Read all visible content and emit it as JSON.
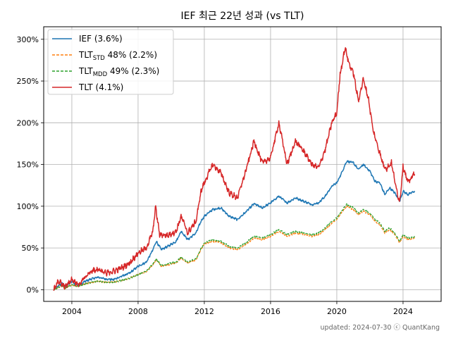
{
  "chart_data": {
    "type": "line",
    "title": "IEF 최근 22년 성과 (vs TLT)",
    "xlabel": "",
    "ylabel": "",
    "xlim": [
      2002.3,
      2026.3
    ],
    "ylim": [
      -14,
      315
    ],
    "x_ticks": [
      2004,
      2008,
      2012,
      2016,
      2020,
      2024
    ],
    "x_tick_labels": [
      "2004",
      "2008",
      "2012",
      "2016",
      "2020",
      "2024"
    ],
    "y_ticks": [
      0,
      50,
      100,
      150,
      200,
      250,
      300
    ],
    "y_tick_labels": [
      "0%",
      "50%",
      "100%",
      "150%",
      "200%",
      "250%",
      "300%"
    ],
    "grid": true,
    "legend_position": "top-left",
    "legend": [
      {
        "label": "IEF (3.6%)",
        "main": "IEF (3.6%)",
        "sub": "",
        "rest": "",
        "color": "#1f77b4",
        "style": "solid"
      },
      {
        "label": "TLT_STD 48% (2.2%)",
        "main": "TLT",
        "sub": "STD",
        "rest": " 48% (2.2%)",
        "color": "#ff7f0e",
        "style": "dashed"
      },
      {
        "label": "TLT_MDD 49% (2.3%)",
        "main": "TLT",
        "sub": "MDD",
        "rest": " 49% (2.3%)",
        "color": "#2ca02c",
        "style": "dashed"
      },
      {
        "label": "TLT (4.1%)",
        "main": "TLT (4.1%)",
        "sub": "",
        "rest": "",
        "color": "#d62728",
        "style": "solid"
      }
    ],
    "footer": "updated: 2024-07-30 ⓒ QuantKang",
    "series": [
      {
        "name": "IEF (3.6%)",
        "color": "#1f77b4",
        "noise": 1.2,
        "points": [
          [
            2002.9,
            0
          ],
          [
            2003.4,
            8
          ],
          [
            2003.6,
            4
          ],
          [
            2004.0,
            10
          ],
          [
            2004.4,
            5
          ],
          [
            2004.8,
            10
          ],
          [
            2005.2,
            13
          ],
          [
            2005.6,
            15
          ],
          [
            2006.0,
            13
          ],
          [
            2006.5,
            12
          ],
          [
            2007.0,
            16
          ],
          [
            2007.5,
            20
          ],
          [
            2008.0,
            28
          ],
          [
            2008.5,
            33
          ],
          [
            2008.9,
            48
          ],
          [
            2009.1,
            58
          ],
          [
            2009.4,
            48
          ],
          [
            2009.8,
            52
          ],
          [
            2010.3,
            58
          ],
          [
            2010.6,
            70
          ],
          [
            2011.0,
            60
          ],
          [
            2011.5,
            68
          ],
          [
            2011.8,
            82
          ],
          [
            2012.0,
            88
          ],
          [
            2012.5,
            96
          ],
          [
            2013.0,
            98
          ],
          [
            2013.5,
            88
          ],
          [
            2014.0,
            84
          ],
          [
            2014.5,
            93
          ],
          [
            2015.0,
            103
          ],
          [
            2015.5,
            98
          ],
          [
            2016.0,
            104
          ],
          [
            2016.5,
            112
          ],
          [
            2017.0,
            104
          ],
          [
            2017.5,
            110
          ],
          [
            2018.0,
            106
          ],
          [
            2018.5,
            102
          ],
          [
            2018.9,
            104
          ],
          [
            2019.3,
            112
          ],
          [
            2019.7,
            124
          ],
          [
            2020.0,
            128
          ],
          [
            2020.2,
            136
          ],
          [
            2020.6,
            154
          ],
          [
            2021.0,
            152
          ],
          [
            2021.3,
            144
          ],
          [
            2021.6,
            150
          ],
          [
            2022.0,
            142
          ],
          [
            2022.3,
            130
          ],
          [
            2022.6,
            128
          ],
          [
            2022.9,
            114
          ],
          [
            2023.2,
            122
          ],
          [
            2023.5,
            116
          ],
          [
            2023.8,
            106
          ],
          [
            2024.0,
            118
          ],
          [
            2024.3,
            114
          ],
          [
            2024.7,
            118
          ]
        ]
      },
      {
        "name": "TLT_STD 48% (2.2%)",
        "color": "#ff7f0e",
        "noise": 0.9,
        "offset": 0.8,
        "dashed": true,
        "points": [
          [
            2002.9,
            0
          ],
          [
            2003.4,
            5
          ],
          [
            2003.6,
            2
          ],
          [
            2004.0,
            6
          ],
          [
            2004.4,
            4
          ],
          [
            2004.8,
            7
          ],
          [
            2005.2,
            9
          ],
          [
            2005.6,
            10
          ],
          [
            2006.0,
            9
          ],
          [
            2006.5,
            9
          ],
          [
            2007.0,
            11
          ],
          [
            2007.5,
            14
          ],
          [
            2008.0,
            18
          ],
          [
            2008.5,
            22
          ],
          [
            2008.9,
            30
          ],
          [
            2009.1,
            36
          ],
          [
            2009.4,
            28
          ],
          [
            2009.8,
            30
          ],
          [
            2010.3,
            32
          ],
          [
            2010.6,
            38
          ],
          [
            2011.0,
            32
          ],
          [
            2011.5,
            36
          ],
          [
            2011.8,
            48
          ],
          [
            2012.0,
            55
          ],
          [
            2012.5,
            58
          ],
          [
            2013.0,
            56
          ],
          [
            2013.5,
            50
          ],
          [
            2014.0,
            48
          ],
          [
            2014.5,
            54
          ],
          [
            2015.0,
            62
          ],
          [
            2015.5,
            60
          ],
          [
            2016.0,
            64
          ],
          [
            2016.5,
            70
          ],
          [
            2017.0,
            64
          ],
          [
            2017.5,
            68
          ],
          [
            2018.0,
            66
          ],
          [
            2018.5,
            64
          ],
          [
            2018.9,
            66
          ],
          [
            2019.3,
            72
          ],
          [
            2019.7,
            80
          ],
          [
            2020.0,
            84
          ],
          [
            2020.2,
            90
          ],
          [
            2020.6,
            100
          ],
          [
            2021.0,
            96
          ],
          [
            2021.3,
            90
          ],
          [
            2021.6,
            94
          ],
          [
            2022.0,
            90
          ],
          [
            2022.3,
            82
          ],
          [
            2022.6,
            78
          ],
          [
            2022.9,
            68
          ],
          [
            2023.2,
            72
          ],
          [
            2023.5,
            66
          ],
          [
            2023.8,
            56
          ],
          [
            2024.0,
            64
          ],
          [
            2024.3,
            60
          ],
          [
            2024.7,
            62
          ]
        ]
      },
      {
        "name": "TLT_MDD 49% (2.3%)",
        "color": "#2ca02c",
        "noise": 0.9,
        "offset": 0,
        "dashed": true,
        "points": [
          [
            2002.9,
            0
          ],
          [
            2003.4,
            5
          ],
          [
            2003.6,
            2
          ],
          [
            2004.0,
            6
          ],
          [
            2004.4,
            4
          ],
          [
            2004.8,
            7
          ],
          [
            2005.2,
            9
          ],
          [
            2005.6,
            10
          ],
          [
            2006.0,
            9
          ],
          [
            2006.5,
            9
          ],
          [
            2007.0,
            11
          ],
          [
            2007.5,
            14
          ],
          [
            2008.0,
            18
          ],
          [
            2008.5,
            22
          ],
          [
            2008.9,
            31
          ],
          [
            2009.1,
            37
          ],
          [
            2009.4,
            29
          ],
          [
            2009.8,
            31
          ],
          [
            2010.3,
            33
          ],
          [
            2010.6,
            39
          ],
          [
            2011.0,
            33
          ],
          [
            2011.5,
            37
          ],
          [
            2011.8,
            49
          ],
          [
            2012.0,
            56
          ],
          [
            2012.5,
            60
          ],
          [
            2013.0,
            58
          ],
          [
            2013.5,
            52
          ],
          [
            2014.0,
            50
          ],
          [
            2014.5,
            56
          ],
          [
            2015.0,
            64
          ],
          [
            2015.5,
            62
          ],
          [
            2016.0,
            66
          ],
          [
            2016.5,
            72
          ],
          [
            2017.0,
            66
          ],
          [
            2017.5,
            70
          ],
          [
            2018.0,
            68
          ],
          [
            2018.5,
            66
          ],
          [
            2018.9,
            68
          ],
          [
            2019.3,
            74
          ],
          [
            2019.7,
            82
          ],
          [
            2020.0,
            86
          ],
          [
            2020.2,
            92
          ],
          [
            2020.6,
            102
          ],
          [
            2021.0,
            98
          ],
          [
            2021.3,
            92
          ],
          [
            2021.6,
            96
          ],
          [
            2022.0,
            92
          ],
          [
            2022.3,
            84
          ],
          [
            2022.6,
            80
          ],
          [
            2022.9,
            70
          ],
          [
            2023.2,
            74
          ],
          [
            2023.5,
            68
          ],
          [
            2023.8,
            58
          ],
          [
            2024.0,
            66
          ],
          [
            2024.3,
            62
          ],
          [
            2024.7,
            63
          ]
        ]
      },
      {
        "name": "TLT (4.1%)",
        "color": "#d62728",
        "noise": 3.2,
        "points": [
          [
            2002.9,
            0
          ],
          [
            2003.2,
            10
          ],
          [
            2003.6,
            4
          ],
          [
            2004.0,
            12
          ],
          [
            2004.4,
            6
          ],
          [
            2004.8,
            16
          ],
          [
            2005.2,
            22
          ],
          [
            2005.6,
            25
          ],
          [
            2006.0,
            20
          ],
          [
            2006.5,
            22
          ],
          [
            2007.0,
            26
          ],
          [
            2007.5,
            32
          ],
          [
            2008.0,
            44
          ],
          [
            2008.5,
            50
          ],
          [
            2008.9,
            70
          ],
          [
            2009.05,
            100
          ],
          [
            2009.3,
            66
          ],
          [
            2009.8,
            65
          ],
          [
            2010.3,
            70
          ],
          [
            2010.6,
            88
          ],
          [
            2011.0,
            68
          ],
          [
            2011.5,
            82
          ],
          [
            2011.8,
            118
          ],
          [
            2012.0,
            128
          ],
          [
            2012.5,
            150
          ],
          [
            2013.0,
            140
          ],
          [
            2013.5,
            116
          ],
          [
            2014.0,
            110
          ],
          [
            2014.5,
            142
          ],
          [
            2015.0,
            178
          ],
          [
            2015.5,
            152
          ],
          [
            2016.0,
            158
          ],
          [
            2016.5,
            200
          ],
          [
            2017.0,
            150
          ],
          [
            2017.5,
            178
          ],
          [
            2018.0,
            166
          ],
          [
            2018.5,
            150
          ],
          [
            2018.9,
            146
          ],
          [
            2019.3,
            168
          ],
          [
            2019.7,
            200
          ],
          [
            2020.0,
            212
          ],
          [
            2020.2,
            258
          ],
          [
            2020.5,
            290
          ],
          [
            2020.75,
            270
          ],
          [
            2021.0,
            260
          ],
          [
            2021.3,
            226
          ],
          [
            2021.6,
            252
          ],
          [
            2021.9,
            230
          ],
          [
            2022.2,
            190
          ],
          [
            2022.5,
            170
          ],
          [
            2022.8,
            150
          ],
          [
            2023.0,
            145
          ],
          [
            2023.3,
            152
          ],
          [
            2023.6,
            120
          ],
          [
            2023.8,
            105
          ],
          [
            2024.0,
            148
          ],
          [
            2024.3,
            128
          ],
          [
            2024.7,
            140
          ]
        ]
      }
    ]
  }
}
